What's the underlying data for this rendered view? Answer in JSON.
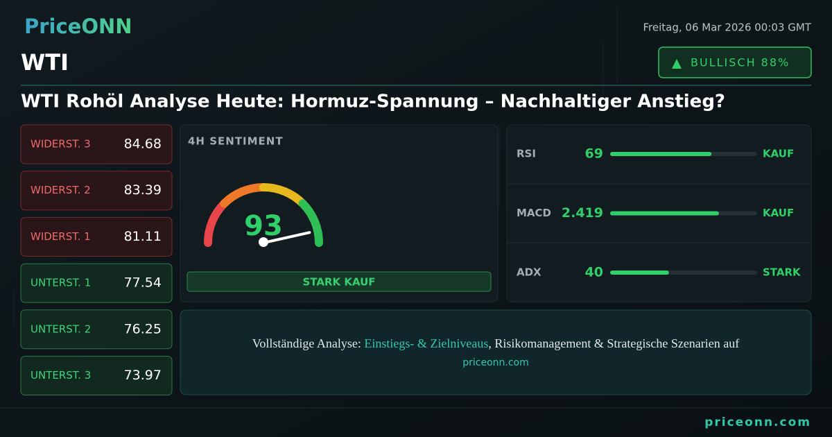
{
  "header": {
    "logo": "PriceONN",
    "date": "Freitag, 06 Mar 2026 00:03 GMT",
    "symbol": "WTI",
    "badge": "BULLISCH 88%",
    "title": "WTI Rohöl Analyse Heute: Hormuz-Spannung – Nachhaltiger Anstieg?"
  },
  "levels": [
    {
      "label": "WIDERST. 3",
      "value": 84.68,
      "kind": "resistance"
    },
    {
      "label": "WIDERST. 2",
      "value": 83.39,
      "kind": "resistance"
    },
    {
      "label": "WIDERST. 1",
      "value": 81.11,
      "kind": "resistance"
    },
    {
      "label": "UNTERST. 1",
      "value": 77.54,
      "kind": "support"
    },
    {
      "label": "UNTERST. 2",
      "value": 76.25,
      "kind": "support"
    },
    {
      "label": "UNTERST. 3",
      "value": 73.97,
      "kind": "support"
    }
  ],
  "gauge": {
    "title": "4H SENTIMENT",
    "value": 93,
    "range": [
      0,
      100
    ],
    "signal": "STARK KAUF"
  },
  "indicators": {
    "scale": [
      0,
      100
    ],
    "rows": [
      {
        "label": "RSI",
        "value": 69,
        "bar": 69,
        "signal": "KAUF"
      },
      {
        "label": "MACD",
        "value": 2.419,
        "bar": 74,
        "signal": "KAUF"
      },
      {
        "label": "ADX",
        "value": 40,
        "bar": 40,
        "signal": "STARK"
      }
    ]
  },
  "cta": {
    "lead": "Vollständige Analyse: ",
    "highlight": "Einstiegs- & Zielniveaus",
    "rest": ", Risikomanagement & Strategische Szenarien auf",
    "link": "priceonn.com"
  },
  "footer": {
    "brand": "priceonn.com"
  }
}
